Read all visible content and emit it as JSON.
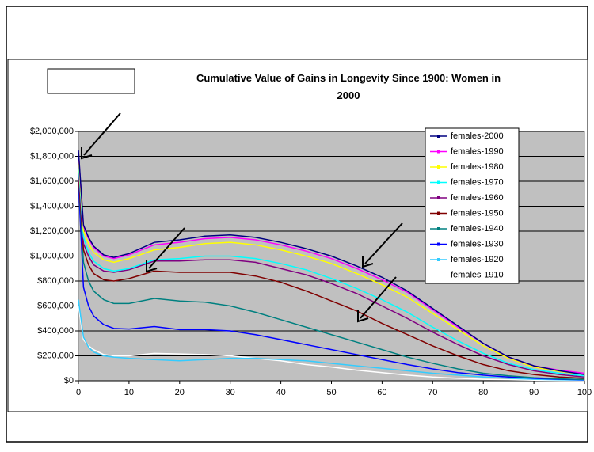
{
  "chart_data": {
    "type": "line",
    "title": "Cumulative Value of Gains in Longevity Since 1900: Women in 2000",
    "x": [
      0,
      1,
      2,
      3,
      5,
      7,
      10,
      15,
      20,
      25,
      30,
      35,
      40,
      45,
      50,
      55,
      60,
      65,
      70,
      75,
      80,
      85,
      90,
      95,
      100
    ],
    "xlim": [
      0,
      100
    ],
    "xticks": [
      0,
      10,
      20,
      30,
      40,
      50,
      60,
      70,
      80,
      90,
      100
    ],
    "ylim": [
      0,
      2000000
    ],
    "yticks": [
      {
        "value": 0,
        "label": "$0"
      },
      {
        "value": 200000,
        "label": "$200,000"
      },
      {
        "value": 400000,
        "label": "$400,000"
      },
      {
        "value": 600000,
        "label": "$600,000"
      },
      {
        "value": 800000,
        "label": "$800,000"
      },
      {
        "value": 1000000,
        "label": "$1,000,000"
      },
      {
        "value": 1200000,
        "label": "$1,200,000"
      },
      {
        "value": 1400000,
        "label": "$1,400,000"
      },
      {
        "value": 1600000,
        "label": "$1,600,000"
      },
      {
        "value": 1800000,
        "label": "$1,800,000"
      },
      {
        "value": 2000000,
        "label": "$2,000,000"
      }
    ],
    "grid": true,
    "series": [
      {
        "name": "females-2000",
        "color": "#000080",
        "values": [
          1850000,
          1250000,
          1150000,
          1080000,
          1010000,
          990000,
          1020000,
          1110000,
          1130000,
          1160000,
          1170000,
          1150000,
          1110000,
          1060000,
          1000000,
          920000,
          830000,
          720000,
          580000,
          440000,
          300000,
          190000,
          120000,
          80000,
          50000
        ]
      },
      {
        "name": "females-1990",
        "color": "#ff00ff",
        "values": [
          1840000,
          1240000,
          1140000,
          1070000,
          1000000,
          980000,
          1010000,
          1090000,
          1110000,
          1140000,
          1150000,
          1130000,
          1090000,
          1040000,
          980000,
          900000,
          810000,
          710000,
          570000,
          430000,
          300000,
          190000,
          120000,
          85000,
          60000
        ]
      },
      {
        "name": "females-1980",
        "color": "#ffff00",
        "values": [
          1800000,
          1200000,
          1100000,
          1030000,
          970000,
          950000,
          980000,
          1050000,
          1070000,
          1100000,
          1110000,
          1090000,
          1050000,
          1000000,
          940000,
          860000,
          770000,
          670000,
          540000,
          410000,
          280000,
          180000,
          110000,
          75000,
          50000
        ]
      },
      {
        "name": "females-1970",
        "color": "#00ffff",
        "values": [
          1750000,
          1150000,
          1030000,
          960000,
          900000,
          880000,
          900000,
          970000,
          980000,
          1000000,
          1000000,
          980000,
          940000,
          890000,
          820000,
          740000,
          650000,
          550000,
          430000,
          320000,
          220000,
          140000,
          90000,
          60000,
          40000
        ]
      },
      {
        "name": "females-1960",
        "color": "#800080",
        "values": [
          1700000,
          1100000,
          1000000,
          930000,
          880000,
          870000,
          890000,
          960000,
          960000,
          970000,
          970000,
          950000,
          900000,
          850000,
          780000,
          700000,
          600000,
          500000,
          390000,
          290000,
          200000,
          130000,
          80000,
          50000,
          30000
        ]
      },
      {
        "name": "females-1950",
        "color": "#800000",
        "values": [
          1650000,
          1050000,
          930000,
          860000,
          810000,
          800000,
          820000,
          880000,
          870000,
          870000,
          870000,
          840000,
          790000,
          720000,
          640000,
          560000,
          460000,
          370000,
          280000,
          200000,
          130000,
          80000,
          50000,
          30000,
          20000
        ]
      },
      {
        "name": "females-1940",
        "color": "#008080",
        "values": [
          1650000,
          950000,
          800000,
          720000,
          650000,
          620000,
          620000,
          660000,
          640000,
          630000,
          600000,
          550000,
          490000,
          430000,
          370000,
          310000,
          250000,
          190000,
          140000,
          95000,
          60000,
          40000,
          25000,
          15000,
          10000
        ]
      },
      {
        "name": "females-1930",
        "color": "#0000ff",
        "values": [
          1600000,
          750000,
          600000,
          520000,
          450000,
          420000,
          415000,
          435000,
          410000,
          410000,
          400000,
          370000,
          330000,
          290000,
          250000,
          210000,
          170000,
          130000,
          95000,
          65000,
          45000,
          30000,
          20000,
          12000,
          8000
        ]
      },
      {
        "name": "females-1920",
        "color": "#33ccff",
        "values": [
          650000,
          350000,
          270000,
          230000,
          200000,
          190000,
          180000,
          170000,
          160000,
          170000,
          180000,
          180000,
          170000,
          160000,
          140000,
          120000,
          100000,
          80000,
          60000,
          45000,
          30000,
          20000,
          12000,
          8000,
          5000
        ]
      },
      {
        "name": "females-1910",
        "color": "#ffffff",
        "values": [
          600000,
          330000,
          280000,
          250000,
          210000,
          200000,
          200000,
          220000,
          215000,
          210000,
          200000,
          180000,
          160000,
          130000,
          110000,
          85000,
          65000,
          45000,
          30000,
          20000,
          12000,
          8000,
          5000,
          3000,
          2000
        ]
      }
    ]
  }
}
